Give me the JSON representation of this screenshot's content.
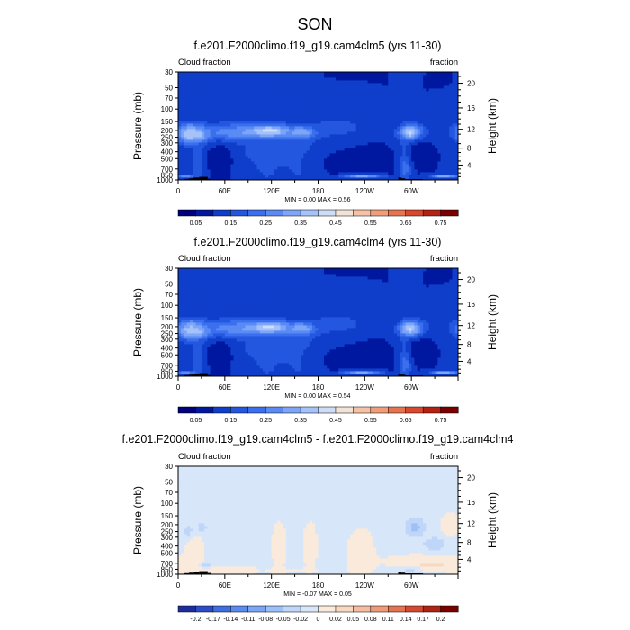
{
  "figure": {
    "title": "SON"
  },
  "panel_common": {
    "left_label": "Cloud fraction",
    "right_label": "fraction",
    "ylabel": "Pressure (mb)",
    "ylabel_right": "Height (km)"
  },
  "colors": {
    "cf_levels": [
      "#00007a",
      "#0018a0",
      "#0f3ecb",
      "#2457e0",
      "#3a6fee",
      "#5a8bf5",
      "#7ea6f8",
      "#a6c2fa",
      "#cfdcf5",
      "#f3e2d6",
      "#f6c1a5",
      "#f29d7a",
      "#e8744f",
      "#d7492d",
      "#b62012",
      "#7a0000"
    ],
    "diff_levels": [
      "#1d2d9c",
      "#2d4cc8",
      "#3f6ee0",
      "#5a8bf0",
      "#7aa6f5",
      "#9cc0f8",
      "#bfd6f9",
      "#d8e6f9",
      "#faeadc",
      "#f9d8c1",
      "#f5bda0",
      "#ef9a78",
      "#e47352",
      "#d44a30",
      "#b02414",
      "#7a0000"
    ],
    "terrain": "#000000"
  },
  "chart_data": [
    {
      "type": "heatmap",
      "title": "f.e201.F2000climo.f19_g19.cam4clm5 (yrs 11-30)",
      "stats_label": "MIN =   0.00  MAX =   0.56",
      "xlabel": "",
      "ylabel": "Pressure (mb)",
      "x_ticks": [
        "0",
        "60E",
        "120E",
        "180",
        "120W",
        "60W"
      ],
      "x_tick_positions_deg": [
        0,
        60,
        120,
        180,
        240,
        300
      ],
      "xlim": [
        0,
        360
      ],
      "y_ticks": [
        "1000",
        "850",
        "700",
        "500",
        "400",
        "300",
        "250",
        "200",
        "150",
        "100",
        "70",
        "50",
        "30"
      ],
      "y_tick_values_mb": [
        1000,
        850,
        700,
        500,
        400,
        300,
        250,
        200,
        150,
        100,
        70,
        50,
        30
      ],
      "ylim_mb": [
        1000,
        30
      ],
      "y2_ticks": [
        "4",
        "8",
        "12",
        "16",
        "20"
      ],
      "y2_tick_values_km": [
        4,
        8,
        12,
        16,
        20
      ],
      "colorbar_labels": [
        "0.05",
        "0.15",
        "0.25",
        "0.35",
        "0.45",
        "0.55",
        "0.65",
        "0.75"
      ],
      "colorbar_levels": [
        0.05,
        0.1,
        0.15,
        0.2,
        0.25,
        0.3,
        0.35,
        0.4,
        0.45,
        0.5,
        0.55,
        0.6,
        0.65,
        0.7,
        0.75
      ],
      "colorbar_labelled_bounds": [
        1,
        3,
        5,
        7,
        9,
        11,
        13,
        15
      ],
      "field": {
        "background": 0.1,
        "features": [
          {
            "lon": 15,
            "p": 220,
            "dlon": 12,
            "dp": 55,
            "v": 0.42
          },
          {
            "lon": 25,
            "p": 230,
            "dlon": 8,
            "dp": 30,
            "v": 0.5
          },
          {
            "lon": 25,
            "p": 520,
            "dlon": 6,
            "dp": 300,
            "v": 0.2
          },
          {
            "lon": 90,
            "p": 210,
            "dlon": 55,
            "dp": 50,
            "v": 0.3
          },
          {
            "lon": 118,
            "p": 205,
            "dlon": 14,
            "dp": 25,
            "v": 0.47
          },
          {
            "lon": 160,
            "p": 215,
            "dlon": 12,
            "dp": 30,
            "v": 0.42
          },
          {
            "lon": 140,
            "p": 420,
            "dlon": 40,
            "dp": 170,
            "v": 0.22
          },
          {
            "lon": 115,
            "p": 530,
            "dlon": 9,
            "dp": 280,
            "v": 0.2
          },
          {
            "lon": 155,
            "p": 530,
            "dlon": 9,
            "dp": 280,
            "v": 0.2
          },
          {
            "lon": 205,
            "p": 180,
            "dlon": 25,
            "dp": 45,
            "v": 0.18
          },
          {
            "lon": 300,
            "p": 215,
            "dlon": 12,
            "dp": 50,
            "v": 0.35
          },
          {
            "lon": 298,
            "p": 220,
            "dlon": 6,
            "dp": 30,
            "v": 0.45
          },
          {
            "lon": 292,
            "p": 550,
            "dlon": 5,
            "dp": 330,
            "v": 0.28
          },
          {
            "lon": 235,
            "p": 880,
            "dlon": 18,
            "dp": 35,
            "v": 0.46
          },
          {
            "lon": 342,
            "p": 880,
            "dlon": 12,
            "dp": 35,
            "v": 0.35
          },
          {
            "lon": 10,
            "p": 880,
            "dlon": 8,
            "dp": 35,
            "v": 0.28
          },
          {
            "lon": 320,
            "p": 380,
            "dlon": 22,
            "dp": 130,
            "v": 0.12
          }
        ],
        "minima": [
          {
            "lon": 215,
            "p": 520,
            "dlon": 45,
            "dp": 250,
            "v": 0.09
          },
          {
            "lon": 55,
            "p": 480,
            "dlon": 10,
            "dp": 160,
            "v": 0.06
          },
          {
            "lon": 315,
            "p": 420,
            "dlon": 12,
            "dp": 110,
            "v": 0.05
          }
        ]
      },
      "terrain": [
        {
          "lon0": 0,
          "lon1": 8,
          "p": 985
        },
        {
          "lon0": 8,
          "lon1": 14,
          "p": 965
        },
        {
          "lon0": 14,
          "lon1": 20,
          "p": 950
        },
        {
          "lon0": 20,
          "lon1": 27,
          "p": 925
        },
        {
          "lon0": 27,
          "lon1": 38,
          "p": 905
        },
        {
          "lon0": 38,
          "lon1": 42,
          "p": 960
        },
        {
          "lon0": 80,
          "lon1": 88,
          "p": 985
        },
        {
          "lon0": 97,
          "lon1": 120,
          "p": 985
        },
        {
          "lon0": 283,
          "lon1": 287,
          "p": 925
        },
        {
          "lon0": 287,
          "lon1": 292,
          "p": 950
        },
        {
          "lon0": 292,
          "lon1": 315,
          "p": 970
        }
      ]
    },
    {
      "type": "heatmap",
      "title": "f.e201.F2000climo.f19_g19.cam4clm4 (yrs 11-30)",
      "stats_label": "MIN =   0.00  MAX =   0.54",
      "xlabel": "",
      "ylabel": "Pressure (mb)",
      "x_ticks": [
        "0",
        "60E",
        "120E",
        "180",
        "120W",
        "60W"
      ],
      "x_tick_positions_deg": [
        0,
        60,
        120,
        180,
        240,
        300
      ],
      "xlim": [
        0,
        360
      ],
      "y_ticks": [
        "1000",
        "850",
        "700",
        "500",
        "400",
        "300",
        "250",
        "200",
        "150",
        "100",
        "70",
        "50",
        "30"
      ],
      "y_tick_values_mb": [
        1000,
        850,
        700,
        500,
        400,
        300,
        250,
        200,
        150,
        100,
        70,
        50,
        30
      ],
      "ylim_mb": [
        1000,
        30
      ],
      "y2_ticks": [
        "4",
        "8",
        "12",
        "16",
        "20"
      ],
      "y2_tick_values_km": [
        4,
        8,
        12,
        16,
        20
      ],
      "colorbar_labels": [
        "0.05",
        "0.15",
        "0.25",
        "0.35",
        "0.45",
        "0.55",
        "0.65",
        "0.75"
      ],
      "colorbar_levels": [
        0.05,
        0.1,
        0.15,
        0.2,
        0.25,
        0.3,
        0.35,
        0.4,
        0.45,
        0.5,
        0.55,
        0.6,
        0.65,
        0.7,
        0.75
      ],
      "colorbar_labelled_bounds": [
        1,
        3,
        5,
        7,
        9,
        11,
        13,
        15
      ],
      "field": {
        "background": 0.1,
        "features": [
          {
            "lon": 15,
            "p": 220,
            "dlon": 12,
            "dp": 55,
            "v": 0.4
          },
          {
            "lon": 25,
            "p": 230,
            "dlon": 8,
            "dp": 30,
            "v": 0.48
          },
          {
            "lon": 25,
            "p": 520,
            "dlon": 6,
            "dp": 300,
            "v": 0.2
          },
          {
            "lon": 90,
            "p": 210,
            "dlon": 55,
            "dp": 50,
            "v": 0.3
          },
          {
            "lon": 118,
            "p": 205,
            "dlon": 14,
            "dp": 25,
            "v": 0.46
          },
          {
            "lon": 160,
            "p": 215,
            "dlon": 12,
            "dp": 30,
            "v": 0.42
          },
          {
            "lon": 140,
            "p": 420,
            "dlon": 40,
            "dp": 170,
            "v": 0.22
          },
          {
            "lon": 115,
            "p": 530,
            "dlon": 9,
            "dp": 280,
            "v": 0.2
          },
          {
            "lon": 155,
            "p": 530,
            "dlon": 9,
            "dp": 280,
            "v": 0.2
          },
          {
            "lon": 205,
            "p": 180,
            "dlon": 25,
            "dp": 45,
            "v": 0.18
          },
          {
            "lon": 300,
            "p": 215,
            "dlon": 12,
            "dp": 50,
            "v": 0.37
          },
          {
            "lon": 298,
            "p": 220,
            "dlon": 6,
            "dp": 30,
            "v": 0.45
          },
          {
            "lon": 292,
            "p": 550,
            "dlon": 5,
            "dp": 330,
            "v": 0.28
          },
          {
            "lon": 235,
            "p": 880,
            "dlon": 18,
            "dp": 35,
            "v": 0.45
          },
          {
            "lon": 342,
            "p": 880,
            "dlon": 12,
            "dp": 35,
            "v": 0.35
          },
          {
            "lon": 10,
            "p": 880,
            "dlon": 8,
            "dp": 35,
            "v": 0.3
          },
          {
            "lon": 320,
            "p": 380,
            "dlon": 22,
            "dp": 130,
            "v": 0.12
          }
        ],
        "minima": [
          {
            "lon": 215,
            "p": 520,
            "dlon": 45,
            "dp": 250,
            "v": 0.09
          },
          {
            "lon": 55,
            "p": 480,
            "dlon": 10,
            "dp": 160,
            "v": 0.06
          },
          {
            "lon": 315,
            "p": 420,
            "dlon": 12,
            "dp": 110,
            "v": 0.05
          }
        ]
      },
      "terrain": [
        {
          "lon0": 0,
          "lon1": 8,
          "p": 985
        },
        {
          "lon0": 8,
          "lon1": 14,
          "p": 965
        },
        {
          "lon0": 14,
          "lon1": 20,
          "p": 950
        },
        {
          "lon0": 20,
          "lon1": 27,
          "p": 925
        },
        {
          "lon0": 27,
          "lon1": 38,
          "p": 905
        },
        {
          "lon0": 38,
          "lon1": 42,
          "p": 960
        },
        {
          "lon0": 80,
          "lon1": 88,
          "p": 985
        },
        {
          "lon0": 97,
          "lon1": 120,
          "p": 985
        },
        {
          "lon0": 283,
          "lon1": 287,
          "p": 925
        },
        {
          "lon0": 287,
          "lon1": 292,
          "p": 950
        },
        {
          "lon0": 292,
          "lon1": 315,
          "p": 970
        }
      ]
    },
    {
      "type": "heatmap",
      "title": "f.e201.F2000climo.f19_g19.cam4clm5 - f.e201.F2000climo.f19_g19.cam4clm4",
      "stats_label": "MIN =  -0.07  MAX =   0.05",
      "xlabel": "",
      "ylabel": "Pressure (mb)",
      "x_ticks": [
        "0",
        "60E",
        "120E",
        "180",
        "120W",
        "60W"
      ],
      "x_tick_positions_deg": [
        0,
        60,
        120,
        180,
        240,
        300
      ],
      "xlim": [
        0,
        360
      ],
      "y_ticks": [
        "1000",
        "850",
        "700",
        "500",
        "400",
        "300",
        "250",
        "200",
        "150",
        "100",
        "70",
        "50",
        "30"
      ],
      "y_tick_values_mb": [
        1000,
        850,
        700,
        500,
        400,
        300,
        250,
        200,
        150,
        100,
        70,
        50,
        30
      ],
      "ylim_mb": [
        1000,
        30
      ],
      "y2_ticks": [
        "4",
        "8",
        "12",
        "16",
        "20"
      ],
      "y2_tick_values_km": [
        4,
        8,
        12,
        16,
        20
      ],
      "colorbar_labels": [
        "-0.2",
        "-0.17",
        "-0.14",
        "-0.11",
        "-0.08",
        "-0.05",
        "-0.02",
        "0",
        "0.02",
        "0.05",
        "0.08",
        "0.11",
        "0.14",
        "0.17",
        "0.2"
      ],
      "colorbar_levels": [
        -0.2,
        -0.17,
        -0.14,
        -0.11,
        -0.08,
        -0.05,
        -0.02,
        0,
        0.02,
        0.05,
        0.08,
        0.11,
        0.14,
        0.17,
        0.2
      ],
      "colorbar_labelled_bounds": [
        1,
        2,
        3,
        4,
        5,
        6,
        7,
        8,
        9,
        10,
        11,
        12,
        13,
        14,
        15
      ],
      "field": {
        "background": -0.005,
        "features": [
          {
            "lon": 20,
            "p": 380,
            "dlon": 8,
            "dp": 250,
            "v": 0.012
          },
          {
            "lon": 130,
            "p": 400,
            "dlon": 6,
            "dp": 280,
            "v": 0.012
          },
          {
            "lon": 170,
            "p": 400,
            "dlon": 6,
            "dp": 280,
            "v": 0.012
          },
          {
            "lon": 235,
            "p": 500,
            "dlon": 12,
            "dp": 350,
            "v": 0.012
          },
          {
            "lon": 320,
            "p": 650,
            "dlon": 40,
            "dp": 120,
            "v": 0.01
          },
          {
            "lon": 350,
            "p": 200,
            "dlon": 8,
            "dp": 60,
            "v": 0.012
          },
          {
            "lon": 323,
            "p": 755,
            "dlon": 10,
            "dp": 30,
            "v": 0.035
          },
          {
            "lon": 338,
            "p": 770,
            "dlon": 10,
            "dp": 30,
            "v": 0.03
          },
          {
            "lon": 60,
            "p": 880,
            "dlon": 70,
            "dp": 60,
            "v": 0.012
          },
          {
            "lon": 25,
            "p": 500,
            "dlon": 3,
            "dp": 200,
            "v": 0.015
          }
        ],
        "minima": [
          {
            "lon": 305,
            "p": 215,
            "dlon": 8,
            "dp": 50,
            "v": -0.06
          },
          {
            "lon": 330,
            "p": 370,
            "dlon": 10,
            "dp": 60,
            "v": -0.04
          },
          {
            "lon": 30,
            "p": 220,
            "dlon": 6,
            "dp": 40,
            "v": -0.03
          },
          {
            "lon": 13,
            "p": 240,
            "dlon": 5,
            "dp": 50,
            "v": -0.03
          },
          {
            "lon": 35,
            "p": 730,
            "dlon": 4,
            "dp": 40,
            "v": -0.035
          },
          {
            "lon": 110,
            "p": 500,
            "dlon": 4,
            "dp": 300,
            "v": -0.02
          },
          {
            "lon": 300,
            "p": 850,
            "dlon": 6,
            "dp": 40,
            "v": -0.04
          }
        ]
      },
      "terrain": [
        {
          "lon0": 0,
          "lon1": 8,
          "p": 985
        },
        {
          "lon0": 8,
          "lon1": 14,
          "p": 965
        },
        {
          "lon0": 14,
          "lon1": 20,
          "p": 950
        },
        {
          "lon0": 20,
          "lon1": 27,
          "p": 925
        },
        {
          "lon0": 27,
          "lon1": 38,
          "p": 905
        },
        {
          "lon0": 38,
          "lon1": 42,
          "p": 960
        },
        {
          "lon0": 80,
          "lon1": 88,
          "p": 985
        },
        {
          "lon0": 97,
          "lon1": 120,
          "p": 985
        },
        {
          "lon0": 283,
          "lon1": 287,
          "p": 925
        },
        {
          "lon0": 287,
          "lon1": 292,
          "p": 950
        },
        {
          "lon0": 292,
          "lon1": 315,
          "p": 970
        }
      ]
    }
  ]
}
